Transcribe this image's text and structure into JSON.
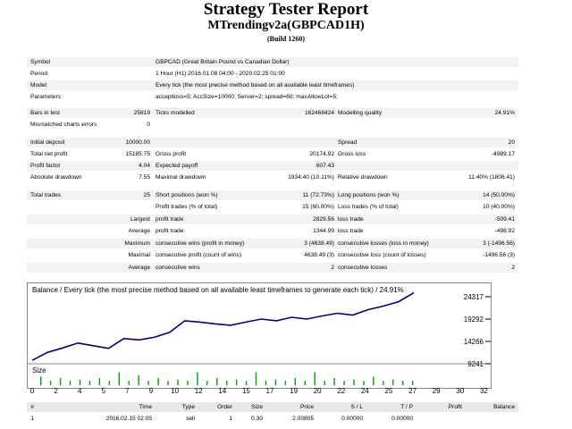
{
  "header": {
    "title": "Strategy Tester Report",
    "subtitle": "MTrendingv2a(GBPCAD1H)",
    "build": "(Build 1260)"
  },
  "summary": {
    "symbol_label": "Symbol",
    "symbol_value": "GBPCAD (Great Britain Pound vs Canadian Dollar)",
    "period_label": "Period",
    "period_value": "1 Hour (H1) 2016.01.08 04:00 - 2020.02.25 01:00",
    "model_label": "Model",
    "model_value": "Every tick (the most precise method based on all available least timeframes)",
    "params_label": "Parameters",
    "params_value": "acceptloss=5; AccSize=10000; Server=2; spread=60; maxAllowLot=5;",
    "bars_label": "Bars in test",
    "bars_value": "25819",
    "ticks_label": "Ticks modelled",
    "ticks_value": "162468424",
    "quality_label": "Modelling quality",
    "quality_value": "24.91%",
    "mismatch_label": "Mismatched charts errors",
    "mismatch_value": "0",
    "deposit_label": "Initial deposit",
    "deposit_value": "10000.00",
    "spread_label": "Spread",
    "spread_value": "20",
    "netprofit_label": "Total net profit",
    "netprofit_value": "15185.75",
    "grossprofit_label": "Gross profit",
    "grossprofit_value": "20174.92",
    "grossloss_label": "Gross loss",
    "grossloss_value": "-4989.17",
    "pf_label": "Profit factor",
    "pf_value": "4.04",
    "payoff_label": "Expected payoff",
    "payoff_value": "607.43",
    "absdd_label": "Absolute drawdown",
    "absdd_value": "7.55",
    "maxdd_label": "Maximal drawdown",
    "maxdd_value": "1934.40 (10.11%)",
    "reldd_label": "Relative drawdown",
    "reldd_value": "11.40% (1806.41)",
    "trades_label": "Total trades",
    "trades_value": "25",
    "short_label": "Short positions (won %)",
    "short_value": "11 (72.73%)",
    "long_label": "Long positions (won %)",
    "long_value": "14 (50.00%)",
    "ptrades_label": "Profit trades (% of total)",
    "ptrades_value": "15 (60.00%)",
    "ltrades_label": "Loss trades (% of total)",
    "ltrades_value": "10 (40.00%)",
    "largest_label": "Largest",
    "lpt_label": "profit trade",
    "lpt_value": "2829.56",
    "llt_label": "loss trade",
    "llt_value": "-509.41",
    "average_label": "Average",
    "apt_label": "profit trade",
    "apt_value": "1344.99",
    "alt_label": "loss trade",
    "alt_value": "-498.92",
    "maximum_label": "Maximum",
    "mcw_label": "consecutive wins (profit in money)",
    "mcw_value": "3 (4638.49)",
    "mcl_label": "consecutive losses (loss in money)",
    "mcl_value": "3 (-1496.56)",
    "maximal_label": "Maximal",
    "mcp_label": "consecutive profit (count of wins)",
    "mcp_value": "4638.49 (3)",
    "mclo_label": "consecutive loss (count of losses)",
    "mclo_value": "-1496.56 (3)",
    "average2_label": "Average",
    "acw_label": "consecutive wins",
    "acw_value": "2",
    "acl_label": "consecutive losses",
    "acl_value": "2"
  },
  "chart_data": {
    "type": "line",
    "title": "Balance / Every tick (the most precise method based on all available least timeframes to generate each tick) / 24.91%",
    "size_label": "Size",
    "x": [
      0,
      1,
      2,
      3,
      4,
      5,
      6,
      7,
      8,
      9,
      10,
      11,
      12,
      13,
      14,
      15,
      16,
      17,
      18,
      19,
      20,
      21,
      22,
      23,
      24,
      25
    ],
    "xticks": [
      "0",
      "2",
      "4",
      "5",
      "7",
      "9",
      "10",
      "12",
      "14",
      "15",
      "17",
      "19",
      "20",
      "22",
      "24",
      "25",
      "27",
      "29",
      "30",
      "32"
    ],
    "yticks": [
      "24317",
      "19292",
      "14266",
      "9241"
    ],
    "ylim": [
      9241,
      24317
    ],
    "series": [
      {
        "values": [
          10000,
          11800,
          12800,
          13900,
          13300,
          12700,
          14900,
          14600,
          15200,
          16300,
          18900,
          18600,
          18200,
          17900,
          18600,
          19300,
          18900,
          19700,
          19300,
          20000,
          20600,
          20200,
          21400,
          22200,
          23200,
          25200
        ]
      }
    ],
    "size_bars": [
      0.6,
      0.3,
      0.5,
      0.3,
      0.4,
      0.3,
      0.5,
      0.3,
      0.9,
      0.3,
      0.7,
      0.3,
      0.5,
      0.3,
      0.4,
      0.3,
      0.9,
      0.3,
      0.5,
      0.3,
      0.4,
      0.3,
      0.9,
      0.3,
      0.4,
      0.3,
      0.5,
      0.3,
      0.9,
      0.3,
      0.5,
      0.3,
      0.4,
      0.3,
      0.6,
      0.3,
      0.4,
      0.3,
      0.3
    ]
  },
  "colors": {
    "balance_line": "#000080",
    "size_bars": "#00a000",
    "shade": "#f2f2f2"
  },
  "trades_table": {
    "headers": [
      "#",
      "Time",
      "Type",
      "Order",
      "Size",
      "Price",
      "S / L",
      "T / P",
      "Profit",
      "Balance"
    ],
    "rows": [
      [
        "1",
        "2016.02.15 02:05",
        "sell",
        "1",
        "0.30",
        "2.00805",
        "0.00000",
        "0.00000",
        "",
        ""
      ]
    ]
  }
}
